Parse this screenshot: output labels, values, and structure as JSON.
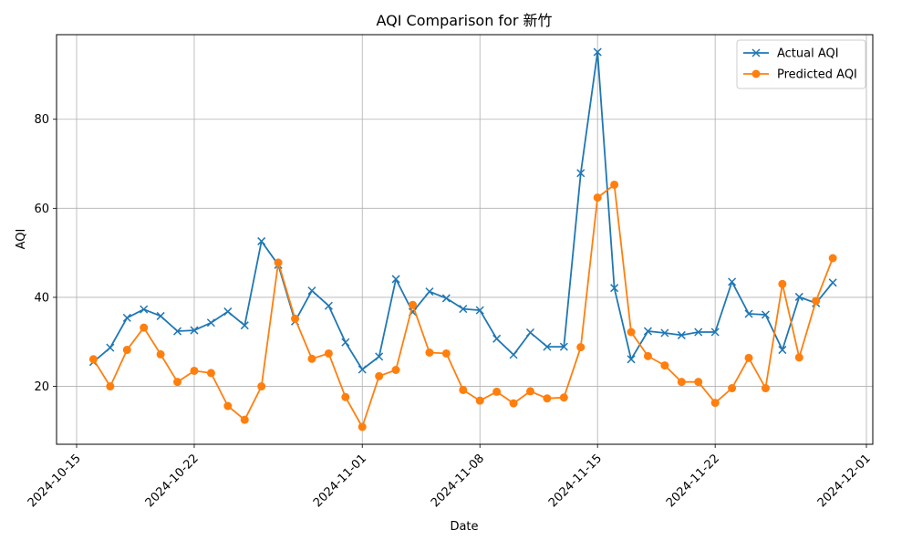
{
  "chart_data": {
    "type": "line",
    "title": "AQI Comparison for 新竹",
    "xlabel": "Date",
    "ylabel": "AQI",
    "x_ticks": [
      "2024-10-15",
      "2024-10-22",
      "2024-11-01",
      "2024-11-08",
      "2024-11-15",
      "2024-11-22",
      "2024-12-01"
    ],
    "y_ticks": [
      "20",
      "40",
      "60",
      "80"
    ],
    "ylim": [
      7,
      99
    ],
    "grid": true,
    "legend_position": "top-right",
    "x": [
      "2024-10-16",
      "2024-10-17",
      "2024-10-18",
      "2024-10-19",
      "2024-10-20",
      "2024-10-21",
      "2024-10-22",
      "2024-10-23",
      "2024-10-24",
      "2024-10-25",
      "2024-10-26",
      "2024-10-27",
      "2024-10-28",
      "2024-10-29",
      "2024-10-30",
      "2024-10-31",
      "2024-11-01",
      "2024-11-02",
      "2024-11-03",
      "2024-11-04",
      "2024-11-05",
      "2024-11-06",
      "2024-11-07",
      "2024-11-08",
      "2024-11-09",
      "2024-11-10",
      "2024-11-11",
      "2024-11-12",
      "2024-11-13",
      "2024-11-14",
      "2024-11-15",
      "2024-11-16",
      "2024-11-17",
      "2024-11-18",
      "2024-11-19",
      "2024-11-20",
      "2024-11-21",
      "2024-11-22",
      "2024-11-23",
      "2024-11-24",
      "2024-11-25",
      "2024-11-26",
      "2024-11-27",
      "2024-11-28",
      "2024-11-29"
    ],
    "series": [
      {
        "name": "Actual AQI",
        "color": "#1f77b4",
        "marker": "x",
        "values": [
          25.5,
          28.7,
          35.4,
          37.3,
          35.8,
          32.4,
          32.6,
          34.3,
          36.8,
          33.7,
          52.6,
          47.3,
          34.6,
          41.5,
          38.1,
          29.9,
          23.8,
          26.7,
          44.1,
          36.7,
          41.3,
          39.8,
          37.4,
          37.1,
          30.7,
          27.1,
          32.1,
          28.9,
          28.9,
          67.9,
          95.1,
          42.1,
          26.1,
          32.4,
          32.0,
          31.5,
          32.2,
          32.2,
          43.5,
          36.3,
          36.1,
          28.2,
          40.1,
          38.7,
          43.3
        ]
      },
      {
        "name": "Predicted AQI",
        "color": "#ff7f0e",
        "marker": "o",
        "values": [
          26.1,
          20.0,
          28.2,
          33.2,
          27.2,
          21.0,
          23.5,
          23.0,
          15.6,
          12.5,
          20.0,
          47.8,
          35.2,
          26.2,
          27.4,
          17.6,
          10.9,
          22.3,
          23.7,
          38.3,
          27.6,
          27.4,
          19.2,
          16.8,
          18.8,
          16.2,
          18.9,
          17.3,
          17.5,
          28.8,
          62.4,
          65.3,
          32.2,
          26.8,
          24.7,
          21.0,
          21.0,
          16.3,
          19.6,
          26.4,
          19.6,
          43.0,
          26.5,
          39.2,
          48.8
        ]
      }
    ]
  }
}
